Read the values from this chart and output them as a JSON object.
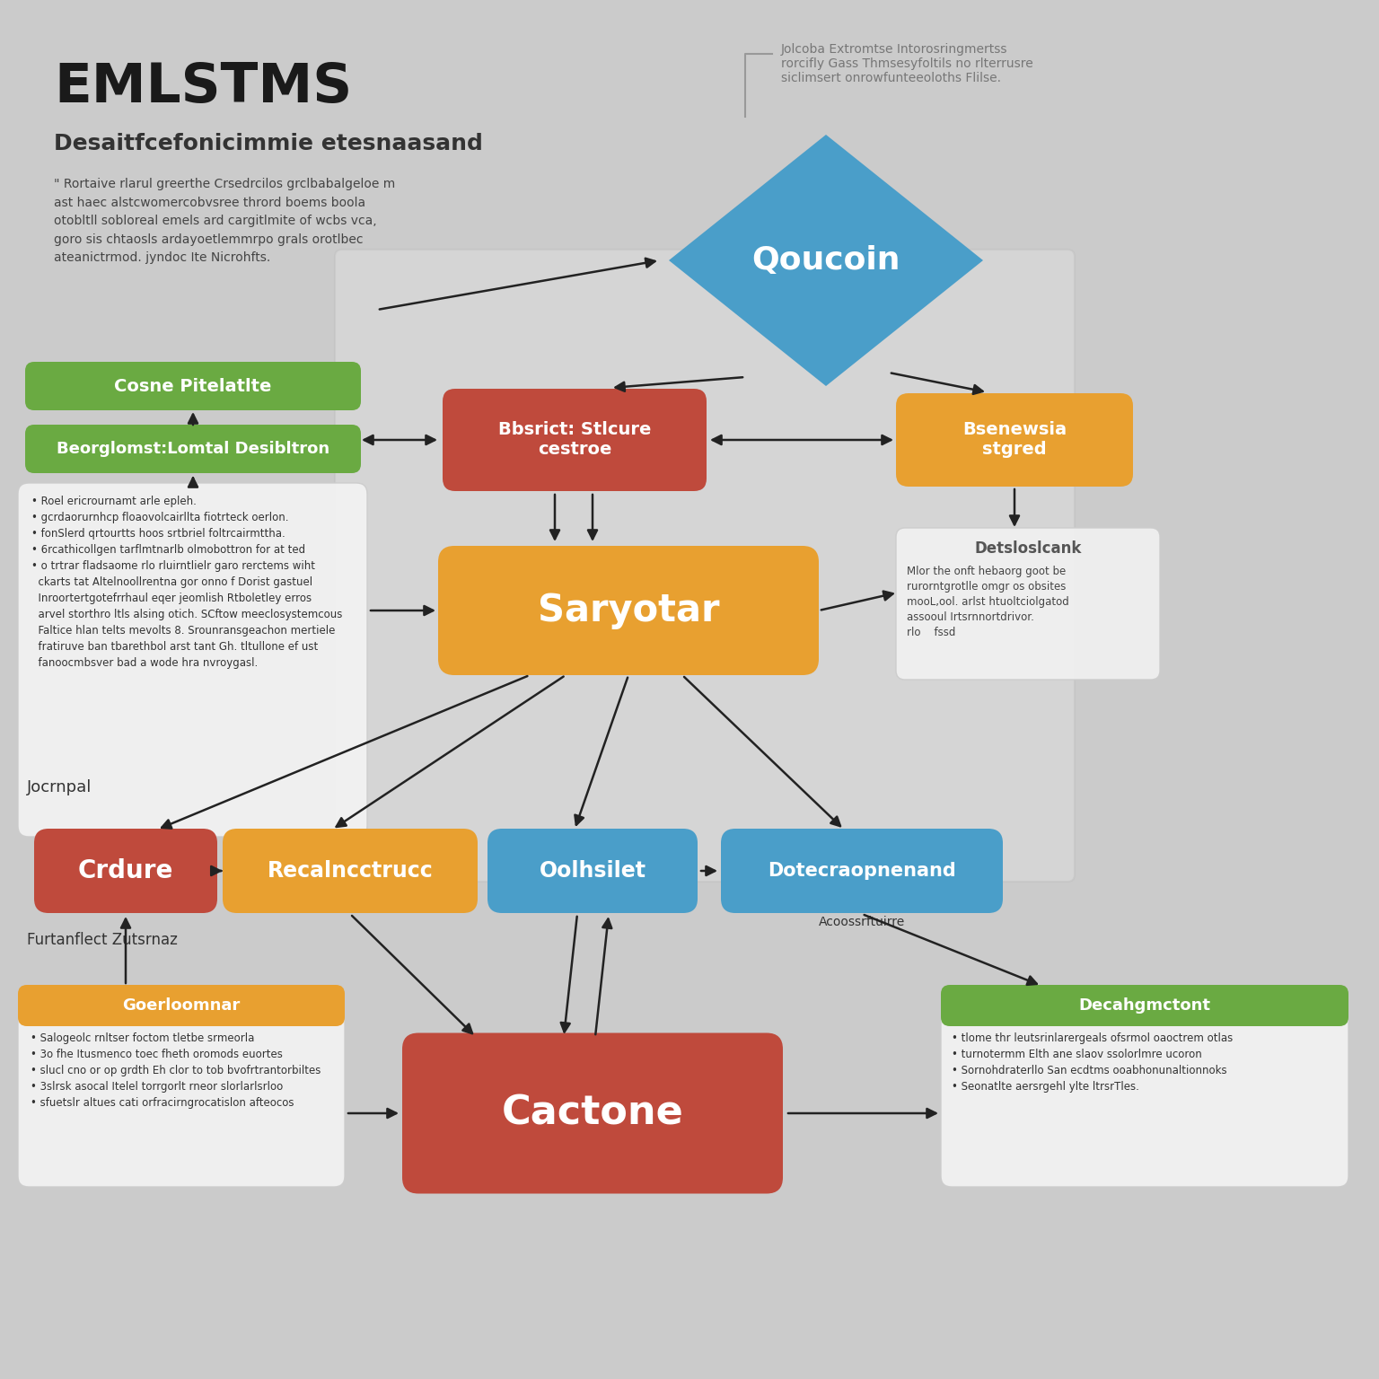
{
  "title": "EMLSTMS",
  "subtitle": "Desaitfcefonicimmie etesnaasand",
  "bg_color": "#cbcbcb",
  "colors": {
    "blue": "#4a9ec9",
    "orange": "#e8a030",
    "red": "#bf4a3c",
    "green": "#6aaa42",
    "light_box": "#efefef",
    "white_box": "#f5f5f5"
  },
  "intro_text": "\" Rortaive rlarul greerthe Crsedrcilos grclbabalgeloe m\nast haec alstcwomercobvsree thrord boems boola\notobltll sobloreal emels ard cargitlmite of wcbs vca,\ngoro sis chtaosls ardayoetlemmrpo grals orotlbec\nateanictrmod. jyndoc Ite Nicrohfts.",
  "top_right_text": "Jolcoba Extromtse Intorosringmertss\nrorcifly Gass Thmsesyfoltils no rlterrusre\nsiclimsert onrowfunteeoloths Flilse.",
  "bullets_left": "• Roel ericrournamt arle epleh.\n• gcrdaorurnhcp floaovolcairllta fiotrteck oerlon.\n• fonSlerd qrtourtts hoos srtbriel foltrcairmttha.\n• 6rcathicollgen tarflmtnarlb olmobottron for at ted\n• o trtrar fladsaome rlo rluirntlielr garo rerctems wiht\n  ckarts tat Altelnoollrentna gor onno f Dorist gastuel\n  Inroortertgotefrrhaul eqer jeomlish Rtboletley erros\n  arvel storthro ltls alsing otich. SCftow meeclosystemcous\n  Faltice hlan telts mevolts 8. Srounransgeachon mertiele\n  fratiruve ban tbarethbol arst tant Gh. tltullone ef ust\n  fanoocmbsver bad a wode hra nvroygasl.",
  "detail_title": "Detsloslcank",
  "detail_text": "Mlor the onft hebaorg goot be\nrurorntgrotlle omgr os obsites\nmooL,ool. arlst htuoltciolgatod\nassooul Irtsrnnortdrivor.\nrlo    fssd",
  "bot_left_title": "Goerloomnar",
  "bot_left_text": "• Salogeolc rnltser foctom tletbe srmeorla\n• 3o fhe Itusmenco toec fheth oromods euortes\n• slucl cno or op grdth Eh clor to tob bvofrtrantorbiltes\n• 3slrsk asocal Itelel torrgorlt rneor slorlarlsrloo\n• sfuetslr altues cati orfracirngrocatislon afteocos",
  "bot_right_title": "Decahgmctont",
  "bot_right_text": "• tlome thr leutsrinlarergeals ofsrmol oaoctrem otlas\n• turnotermm Elth ane slaov ssolorlmre ucoron\n• Sornohdraterllo San ecdtms ooabhonunaltionnoks\n• Seonatlte aersrgehl ylte ltrsrTles."
}
